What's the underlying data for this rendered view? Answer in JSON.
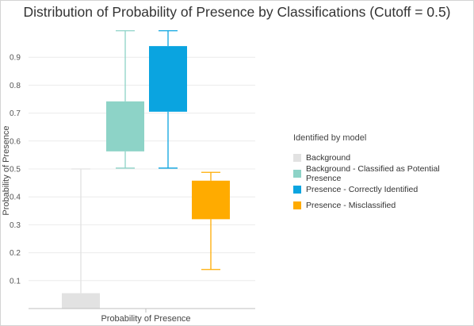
{
  "chart_data": {
    "type": "boxplot",
    "title": "Distribution of Probability of Presence by Classifications (Cutoff = 0.5)",
    "xlabel": "Probability of Presence",
    "ylabel": "Probability of Presence",
    "ylim": [
      0,
      1
    ],
    "yticks": [
      "0.1",
      "0.2",
      "0.3",
      "0.4",
      "0.5",
      "0.6",
      "0.7",
      "0.8",
      "0.9"
    ],
    "grid": true,
    "legend_title": "Identified by model",
    "legend_position": "right",
    "series": [
      {
        "name": "Background",
        "color": "#e2e2e2",
        "min": 0.0,
        "q1": 0.0,
        "q3": 0.055,
        "max": 0.5
      },
      {
        "name": "Background - Classified as Potential Presence",
        "color": "#8dd3c7",
        "min": 0.503,
        "q1": 0.563,
        "q3": 0.742,
        "max": 0.995
      },
      {
        "name": "Presence - Correctly Identified",
        "color": "#0aa4e0",
        "min": 0.503,
        "q1": 0.705,
        "q3": 0.94,
        "max": 0.995
      },
      {
        "name": "Presence - Misclassified",
        "color": "#ffab00",
        "min": 0.14,
        "q1": 0.32,
        "q3": 0.458,
        "max": 0.488
      }
    ]
  }
}
